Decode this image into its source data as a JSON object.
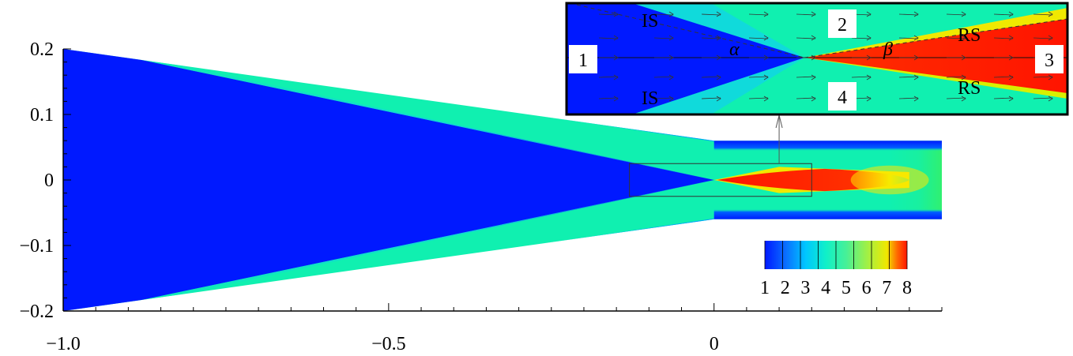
{
  "chart_data": {
    "type": "heatmap",
    "title": "",
    "xlabel": "",
    "ylabel": "",
    "xlim": [
      -1.0,
      0.35
    ],
    "ylim": [
      -0.2,
      0.2
    ],
    "x_ticks": [
      -1.0,
      -0.5,
      0
    ],
    "x_tick_labels": [
      "−1.0",
      "−0.5",
      "0"
    ],
    "y_ticks": [
      0.2,
      0.1,
      0,
      -0.1,
      -0.2
    ],
    "y_tick_labels": [
      "0.2",
      "0.1",
      "0",
      "−0.1",
      "−0.2"
    ],
    "colorbar": {
      "range": [
        1,
        8
      ],
      "ticks": [
        1,
        2,
        3,
        4,
        5,
        6,
        7,
        8
      ],
      "tick_labels": [
        "1",
        "2",
        "3",
        "4",
        "5",
        "6",
        "7",
        "8"
      ],
      "colors": [
        "#0019ff",
        "#0a6cff",
        "#00c6ff",
        "#10f0c8",
        "#46f098",
        "#9ef048",
        "#f0e800",
        "#ff6a00",
        "#ff1400"
      ]
    },
    "domain": {
      "inlet_x": -1.0,
      "inlet_half_height": 0.2,
      "channel_start_x": 0.0,
      "channel_end_x": 0.35,
      "channel_half_height": 0.06
    },
    "regions": [
      {
        "name": "1",
        "value": 1,
        "color": "#0019ff"
      },
      {
        "name": "2",
        "value": 3.8,
        "color": "#10f0b0"
      },
      {
        "name": "3",
        "value": 8,
        "color": "#ff1400"
      },
      {
        "name": "4",
        "value": 3.8,
        "color": "#10f0b0"
      }
    ],
    "zoom_box": {
      "x": [
        -0.13,
        0.15
      ],
      "y": [
        -0.025,
        0.025
      ]
    },
    "inset": {
      "labels": {
        "region_1": "1",
        "region_2": "2",
        "region_3": "3",
        "region_4": "4",
        "incident_shock_upper": "IS",
        "incident_shock_lower": "IS",
        "reflected_shock_upper": "RS",
        "reflected_shock_lower": "RS",
        "alpha": "α",
        "beta": "β"
      }
    }
  }
}
